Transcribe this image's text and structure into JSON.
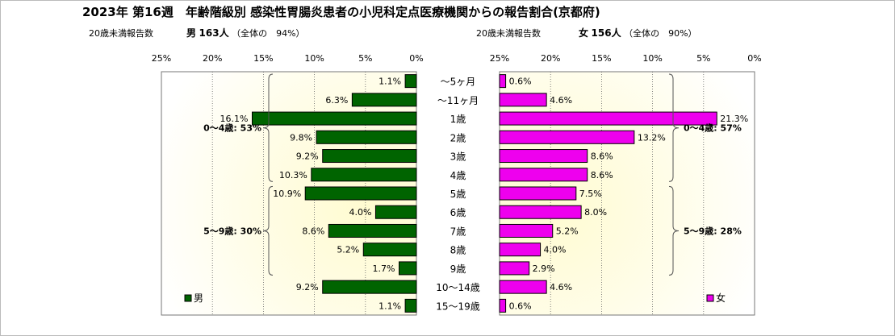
{
  "title": "2023年 第16週　年齢階級別 感染性胃腸炎患者の小児科定点医療機関からの報告割合(京都府)",
  "male_info": {
    "prefix": "20歳未満報告数",
    "sex": "男",
    "count": "163人",
    "share": "（全体の　94%）"
  },
  "female_info": {
    "prefix": "20歳未満報告数",
    "sex": "女",
    "count": "156人",
    "share": "（全体の　90%）"
  },
  "chart_data": {
    "type": "bar",
    "orientation": "horizontal-pyramid",
    "categories": [
      "～5ヶ月",
      "～11ヶ月",
      "1歳",
      "2歳",
      "3歳",
      "4歳",
      "5歳",
      "6歳",
      "7歳",
      "8歳",
      "9歳",
      "10～14歳",
      "15～19歳"
    ],
    "series": [
      {
        "name": "男",
        "color": "#006400",
        "values": [
          1.1,
          6.3,
          16.1,
          9.8,
          9.2,
          10.3,
          10.9,
          4.0,
          8.6,
          5.2,
          1.7,
          9.2,
          1.1
        ],
        "labels": [
          "1.1%",
          "6.3%",
          "16.1%",
          "9.8%",
          "9.2%",
          "10.3%",
          "10.9%",
          "4.0%",
          "8.6%",
          "5.2%",
          "1.7%",
          "9.2%",
          "1.1%"
        ]
      },
      {
        "name": "女",
        "color": "#ee00ee",
        "values": [
          0.6,
          4.6,
          21.3,
          13.2,
          8.6,
          8.6,
          7.5,
          8.0,
          5.2,
          4.0,
          2.9,
          4.6,
          0.6
        ],
        "labels": [
          "0.6%",
          "4.6%",
          "21.3%",
          "13.2%",
          "8.6%",
          "8.6%",
          "7.5%",
          "8.0%",
          "5.2%",
          "4.0%",
          "2.9%",
          "4.6%",
          "0.6%"
        ]
      }
    ],
    "xlim": [
      0,
      25
    ],
    "ticks": [
      25,
      20,
      15,
      10,
      5,
      0
    ],
    "tick_labels": [
      "25%",
      "20%",
      "15%",
      "10%",
      "5%",
      "0%"
    ],
    "annotations": [
      {
        "side": "male",
        "text": "0～4歳: 53%",
        "from": 0,
        "to": 5
      },
      {
        "side": "male",
        "text": "5～9歳: 30%",
        "from": 6,
        "to": 10
      },
      {
        "side": "female",
        "text": "0～4歳: 57%",
        "from": 0,
        "to": 5
      },
      {
        "side": "female",
        "text": "5～9歳: 28%",
        "from": 6,
        "to": 10
      }
    ],
    "grid": true,
    "legend_placement": "bottom-left / bottom-right"
  }
}
